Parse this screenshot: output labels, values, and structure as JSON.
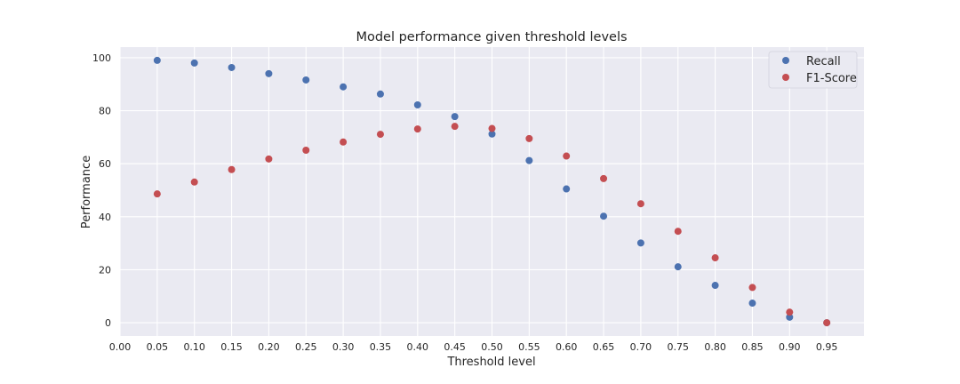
{
  "chart_data": {
    "type": "scatter",
    "title": "Model performance given threshold levels",
    "xlabel": "Threshold level",
    "ylabel": "Performance",
    "xlim": [
      0.0,
      1.0
    ],
    "ylim": [
      -5,
      104
    ],
    "x_ticks": [
      0.0,
      0.05,
      0.1,
      0.15,
      0.2,
      0.25,
      0.3,
      0.35,
      0.4,
      0.45,
      0.5,
      0.55,
      0.6,
      0.65,
      0.7,
      0.75,
      0.8,
      0.85,
      0.9,
      0.95
    ],
    "x_tick_labels": [
      "0.00",
      "0.05",
      "0.10",
      "0.15",
      "0.20",
      "0.25",
      "0.30",
      "0.35",
      "0.40",
      "0.45",
      "0.50",
      "0.55",
      "0.60",
      "0.65",
      "0.70",
      "0.75",
      "0.80",
      "0.85",
      "0.90",
      "0.95"
    ],
    "y_ticks": [
      0,
      20,
      40,
      60,
      80,
      100
    ],
    "y_tick_labels": [
      "0",
      "20",
      "40",
      "60",
      "80",
      "100"
    ],
    "grid": true,
    "legend_position": "top-right",
    "x": [
      0.05,
      0.1,
      0.15,
      0.2,
      0.25,
      0.3,
      0.35,
      0.4,
      0.45,
      0.5,
      0.55,
      0.6,
      0.65,
      0.7,
      0.75,
      0.8,
      0.85,
      0.9,
      0.95
    ],
    "series": [
      {
        "name": "Recall",
        "color": "#4c72b0",
        "values": [
          99,
          98,
          96.3,
          94,
          91.6,
          89,
          86.3,
          82.2,
          77.8,
          71.2,
          61.2,
          50.5,
          40.2,
          30.1,
          21.1,
          14.1,
          7.4,
          2.1,
          0
        ]
      },
      {
        "name": "F1-Score",
        "color": "#c44e52",
        "values": [
          48.6,
          53.1,
          57.8,
          61.8,
          65.1,
          68.2,
          71.1,
          73.1,
          74.1,
          73.3,
          69.5,
          62.9,
          54.4,
          44.9,
          34.5,
          24.5,
          13.3,
          4.0,
          0
        ]
      }
    ]
  }
}
